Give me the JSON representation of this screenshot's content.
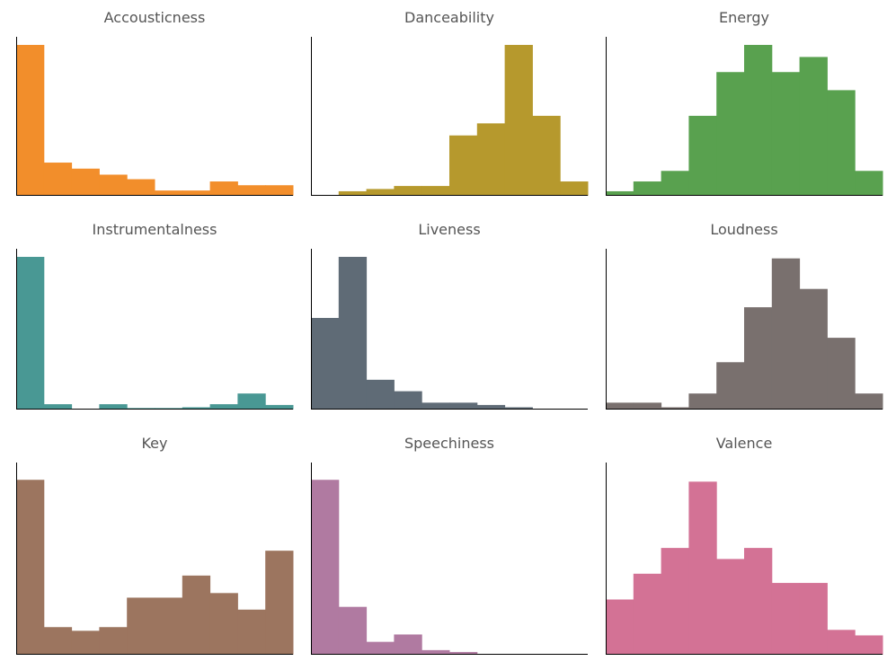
{
  "chart_data": [
    {
      "type": "bar",
      "title": "Accousticness",
      "color": "#F28E2B",
      "ylim": [
        0,
        100
      ],
      "values": [
        100,
        22,
        18,
        14,
        11,
        3.5,
        3.5,
        9.5,
        7,
        7
      ]
    },
    {
      "type": "bar",
      "title": "Danceability",
      "color": "#B6992D",
      "ylim": [
        0,
        100
      ],
      "values": [
        0,
        3,
        4.5,
        6.5,
        6.5,
        40,
        48,
        100,
        53,
        9.5
      ]
    },
    {
      "type": "bar",
      "title": "Energy",
      "color": "#59A14F",
      "ylim": [
        0,
        100
      ],
      "values": [
        3,
        9.5,
        16.5,
        53,
        82,
        100,
        82,
        92,
        70,
        16.5
      ]
    },
    {
      "type": "bar",
      "title": "Instrumentalness",
      "color": "#499894",
      "ylim": [
        0,
        100
      ],
      "values": [
        100,
        3.5,
        0,
        3.5,
        1,
        1,
        1.5,
        3.5,
        10.5,
        3
      ]
    },
    {
      "type": "bar",
      "title": "Liveness",
      "color": "#5F6B76",
      "ylim": [
        0,
        100
      ],
      "values": [
        60,
        100,
        19.5,
        12,
        4.5,
        4.5,
        3,
        1.5
      ]
    },
    {
      "type": "bar",
      "title": "Loudness",
      "color": "#79706E",
      "ylim": [
        0,
        100
      ],
      "values": [
        4.5,
        4.5,
        1.5,
        10.5,
        31,
        67,
        99,
        79,
        47,
        10.5
      ]
    },
    {
      "type": "bar",
      "title": "Key",
      "color": "#9C755F",
      "ylim": [
        0,
        100
      ],
      "values": [
        95,
        15,
        13,
        15,
        31,
        31,
        43,
        33.5,
        24.5,
        56.5
      ]
    },
    {
      "type": "bar",
      "title": "Speechiness",
      "color": "#B07AA1",
      "ylim": [
        0,
        100
      ],
      "values": [
        95,
        26,
        7,
        11,
        2.5,
        1.5,
        0,
        0
      ]
    },
    {
      "type": "bar",
      "title": "Valence",
      "color": "#D37295",
      "ylim": [
        0,
        100
      ],
      "values": [
        30,
        44,
        58,
        94,
        52,
        58,
        39,
        39,
        13.5,
        10.5
      ]
    }
  ]
}
